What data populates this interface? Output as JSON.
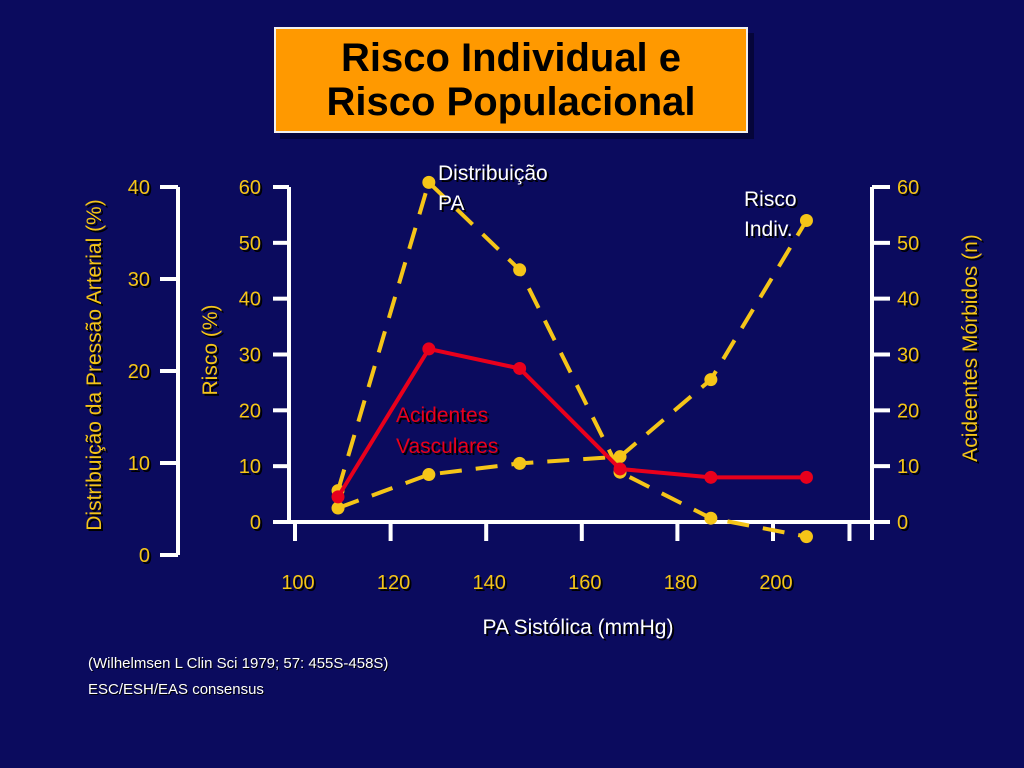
{
  "title": {
    "line1": "Risco  Individual e",
    "line2": "Risco Populacional"
  },
  "colors": {
    "background": "#0b0b5e",
    "title_box": "#ff9900",
    "yellow": "#f5c518",
    "red": "#e8001c",
    "white": "#ffffff"
  },
  "references": {
    "line1": "(Wilhelmsen L Clin Sci 1979; 57: 455S-458S)",
    "line2": "ESC/ESH/EAS consensus"
  },
  "chart_data": {
    "type": "line",
    "xlabel": "PA Sistólica (mmHg)",
    "x_ticks": [
      100,
      120,
      140,
      160,
      180,
      200
    ],
    "xlim": [
      100,
      216
    ],
    "axes": {
      "left_outer": {
        "label": "Distribuição da Pressão Arterial (%)",
        "ticks": [
          0,
          10,
          20,
          30,
          40
        ],
        "ylim": [
          0,
          40
        ]
      },
      "left_inner": {
        "label": "Risco (%)",
        "ticks": [
          0,
          10,
          20,
          30,
          40,
          50,
          60
        ],
        "ylim": [
          0,
          60
        ]
      },
      "right": {
        "label": "Acideentes Mórbidos  (n)",
        "ticks": [
          0,
          10,
          20,
          30,
          40,
          50,
          60
        ],
        "ylim": [
          0,
          60
        ]
      }
    },
    "series": [
      {
        "name": "Distribuição PA",
        "axis": "left_outer",
        "style": "dashed",
        "color": "#f5c518",
        "x": [
          109,
          128,
          147,
          168,
          187,
          207
        ],
        "values": [
          7.0,
          40.5,
          31.0,
          9.0,
          4.0,
          2.0
        ]
      },
      {
        "name": "Risco Indiv.",
        "axis": "left_inner",
        "style": "dashed",
        "color": "#f5c518",
        "x": [
          109,
          128,
          147,
          168,
          187,
          207
        ],
        "values": [
          2.5,
          8.5,
          10.5,
          11.7,
          25.5,
          54.0
        ]
      },
      {
        "name": "Acidentes Vasculares",
        "axis": "right",
        "style": "solid",
        "color": "#e8001c",
        "x": [
          109,
          128,
          147,
          168,
          187,
          207
        ],
        "values": [
          4.5,
          31.0,
          27.5,
          9.5,
          8.0,
          8.0
        ]
      }
    ],
    "annotations": {
      "distribuicao": [
        "Distribuição",
        "PA"
      ],
      "risco": [
        "Risco",
        "Indiv."
      ],
      "acidentes": [
        "Acidentes",
        "Vasculares"
      ]
    }
  }
}
